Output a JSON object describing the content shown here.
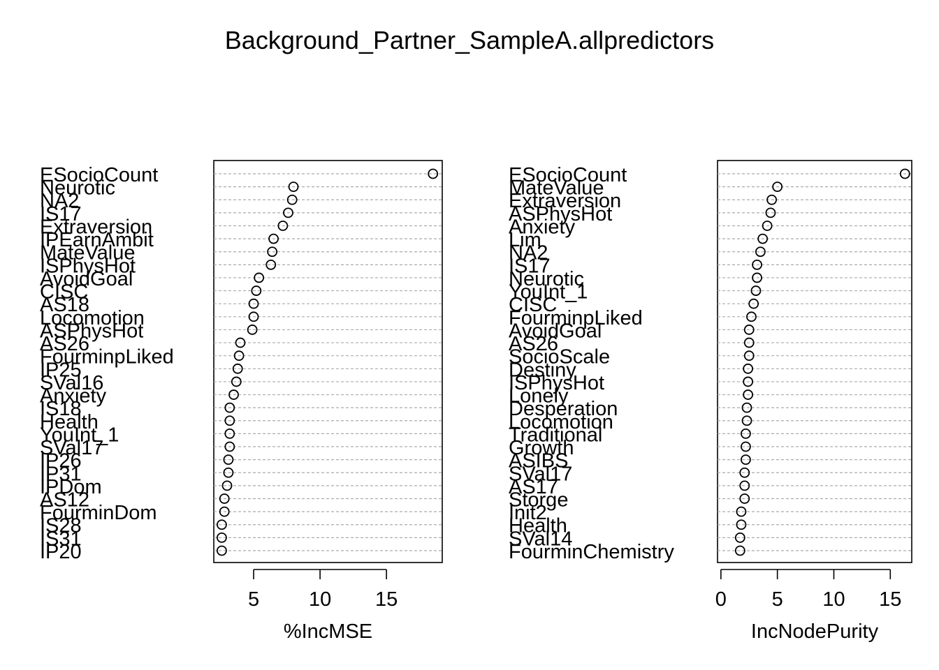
{
  "title": "Background_Partner_SampleA.allpredictors",
  "chart_data": [
    {
      "type": "scatter",
      "subtype": "dotchart",
      "xlabel": "%IncMSE",
      "xticks": [
        5,
        10,
        15
      ],
      "xlim": [
        2.0,
        19.2
      ],
      "grid": "dashed horizontal guide lines",
      "categories": [
        "ESocioCount",
        "Neurotic",
        "NA2",
        "IS17",
        "Extraversion",
        "IPEarnAmbit",
        "MateValue",
        "ISPhysHot",
        "AvoidGoal",
        "CISC",
        "AS18",
        "Locomotion",
        "ASPhysHot",
        "AS26",
        "FourminpLiked",
        "IP25",
        "SVal16",
        "Anxiety",
        "IS18",
        "Health",
        "YouInt_1",
        "SVal17",
        "IP26",
        "IP31",
        "IPDom",
        "AS12",
        "FourminDom",
        "IS28",
        "IS31",
        "IP20"
      ],
      "values": [
        18.5,
        8.0,
        7.9,
        7.6,
        7.2,
        6.5,
        6.4,
        6.3,
        5.4,
        5.2,
        5.0,
        5.0,
        4.9,
        4.0,
        3.9,
        3.8,
        3.7,
        3.5,
        3.2,
        3.2,
        3.2,
        3.2,
        3.1,
        3.1,
        3.0,
        2.8,
        2.8,
        2.6,
        2.6,
        2.6
      ]
    },
    {
      "type": "scatter",
      "subtype": "dotchart",
      "xlabel": "IncNodePurity",
      "xticks": [
        0,
        5,
        10,
        15
      ],
      "xlim": [
        -0.3,
        16.9
      ],
      "grid": "dashed horizontal guide lines",
      "categories": [
        "ESocioCount",
        "MateValue",
        "Extraversion",
        "ASPhysHot",
        "Anxiety",
        "Lim",
        "NA2",
        "IS17",
        "Neurotic",
        "YouInt_1",
        "CISC",
        "FourminpLiked",
        "AvoidGoal",
        "AS26",
        "SocioScale",
        "Destiny",
        "ISPhysHot",
        "Lonely",
        "Desperation",
        "Locomotion",
        "Traditional",
        "Growth",
        "ASIBS",
        "SVal17",
        "AS17",
        "Storge",
        "Init2",
        "Health",
        "SVal14",
        "FourminChemistry"
      ],
      "values": [
        16.3,
        5.0,
        4.5,
        4.4,
        4.1,
        3.7,
        3.5,
        3.2,
        3.2,
        3.1,
        2.9,
        2.7,
        2.5,
        2.5,
        2.5,
        2.4,
        2.4,
        2.4,
        2.3,
        2.3,
        2.2,
        2.2,
        2.2,
        2.1,
        2.1,
        2.1,
        1.8,
        1.8,
        1.7,
        1.7
      ]
    }
  ]
}
